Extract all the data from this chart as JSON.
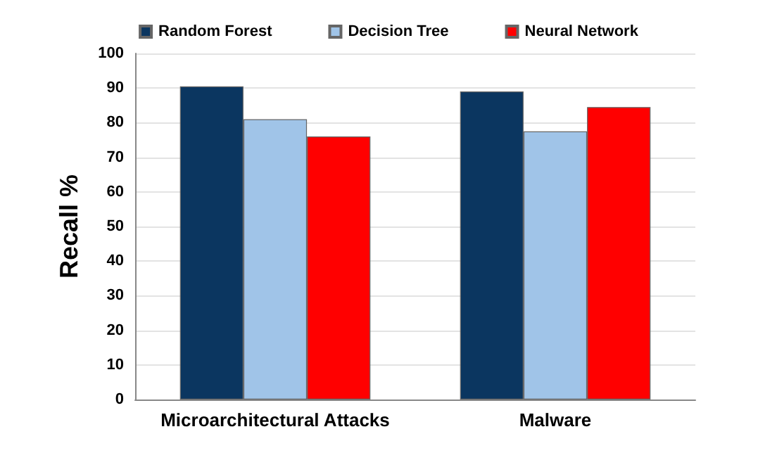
{
  "chart_data": {
    "type": "bar",
    "ylabel": "Recall %",
    "categories": [
      "Microarchitectural Attacks",
      "Malware"
    ],
    "series": [
      {
        "name": "Random Forest",
        "color": "#0b3660",
        "values": [
          90.5,
          89
        ]
      },
      {
        "name": "Decision Tree",
        "color": "#a0c4e8",
        "values": [
          81,
          77.5
        ]
      },
      {
        "name": "Neural Network",
        "color": "#ff0000",
        "values": [
          76,
          84.5
        ]
      }
    ],
    "ylim": [
      0,
      100
    ],
    "yticks": [
      0,
      10,
      20,
      30,
      40,
      50,
      60,
      70,
      80,
      90,
      100
    ],
    "grid": "y",
    "legend": "top"
  }
}
